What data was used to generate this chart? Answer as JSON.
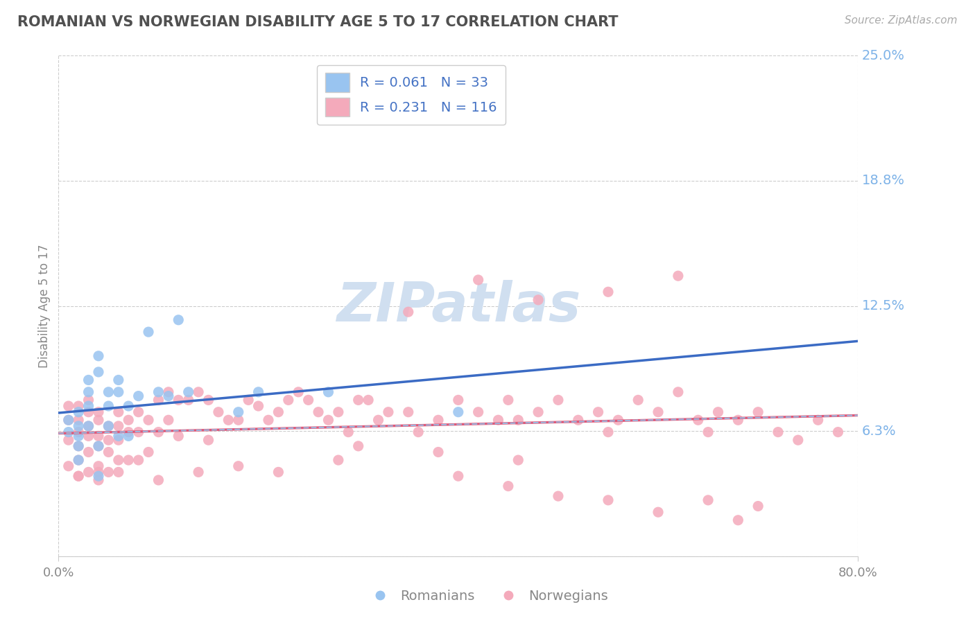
{
  "title": "ROMANIAN VS NORWEGIAN DISABILITY AGE 5 TO 17 CORRELATION CHART",
  "source": "Source: ZipAtlas.com",
  "ylabel": "Disability Age 5 to 17",
  "xlim": [
    0,
    0.8
  ],
  "ylim": [
    0,
    0.25
  ],
  "romanian_R": 0.061,
  "romanian_N": 33,
  "norwegian_R": 0.231,
  "norwegian_N": 116,
  "romanian_color": "#99C4F0",
  "norwegian_color": "#F4AABB",
  "romanian_line_color": "#3B6BC4",
  "norwegian_line_color": "#E05878",
  "norwegian_dashed_color": "#9BB8E0",
  "background_color": "#FFFFFF",
  "grid_color": "#CCCCCC",
  "watermark_color": "#D0DFF0",
  "legend_text_color": "#4472C4",
  "right_label_color": "#7EB3E8",
  "ro_x": [
    0.01,
    0.01,
    0.02,
    0.02,
    0.02,
    0.02,
    0.02,
    0.03,
    0.03,
    0.03,
    0.03,
    0.04,
    0.04,
    0.04,
    0.04,
    0.05,
    0.05,
    0.05,
    0.06,
    0.06,
    0.06,
    0.07,
    0.07,
    0.08,
    0.09,
    0.1,
    0.11,
    0.12,
    0.13,
    0.18,
    0.2,
    0.27,
    0.4
  ],
  "ro_y": [
    0.068,
    0.062,
    0.055,
    0.06,
    0.065,
    0.048,
    0.072,
    0.088,
    0.082,
    0.075,
    0.065,
    0.1,
    0.092,
    0.055,
    0.04,
    0.082,
    0.075,
    0.065,
    0.088,
    0.082,
    0.06,
    0.075,
    0.06,
    0.08,
    0.112,
    0.082,
    0.08,
    0.118,
    0.082,
    0.072,
    0.082,
    0.082,
    0.072
  ],
  "no_x": [
    0.01,
    0.01,
    0.01,
    0.01,
    0.02,
    0.02,
    0.02,
    0.02,
    0.02,
    0.02,
    0.03,
    0.03,
    0.03,
    0.03,
    0.03,
    0.03,
    0.04,
    0.04,
    0.04,
    0.04,
    0.04,
    0.04,
    0.05,
    0.05,
    0.05,
    0.05,
    0.06,
    0.06,
    0.06,
    0.06,
    0.07,
    0.07,
    0.07,
    0.08,
    0.08,
    0.08,
    0.09,
    0.09,
    0.1,
    0.1,
    0.11,
    0.11,
    0.12,
    0.12,
    0.13,
    0.14,
    0.15,
    0.15,
    0.16,
    0.17,
    0.18,
    0.19,
    0.2,
    0.21,
    0.22,
    0.23,
    0.24,
    0.25,
    0.26,
    0.27,
    0.28,
    0.29,
    0.3,
    0.31,
    0.32,
    0.33,
    0.35,
    0.36,
    0.38,
    0.4,
    0.42,
    0.44,
    0.45,
    0.46,
    0.48,
    0.5,
    0.52,
    0.54,
    0.55,
    0.56,
    0.58,
    0.6,
    0.62,
    0.64,
    0.65,
    0.66,
    0.68,
    0.7,
    0.72,
    0.74,
    0.76,
    0.78,
    0.4,
    0.45,
    0.5,
    0.55,
    0.6,
    0.65,
    0.68,
    0.7,
    0.62,
    0.55,
    0.48,
    0.42,
    0.35,
    0.28,
    0.22,
    0.18,
    0.14,
    0.1,
    0.06,
    0.04,
    0.02,
    0.3,
    0.38,
    0.46,
    0.54
  ],
  "no_y": [
    0.068,
    0.058,
    0.075,
    0.045,
    0.068,
    0.062,
    0.055,
    0.075,
    0.048,
    0.04,
    0.072,
    0.065,
    0.06,
    0.052,
    0.078,
    0.042,
    0.068,
    0.06,
    0.055,
    0.072,
    0.045,
    0.038,
    0.065,
    0.058,
    0.052,
    0.042,
    0.072,
    0.065,
    0.058,
    0.042,
    0.068,
    0.062,
    0.048,
    0.072,
    0.062,
    0.048,
    0.068,
    0.052,
    0.078,
    0.062,
    0.082,
    0.068,
    0.078,
    0.06,
    0.078,
    0.082,
    0.078,
    0.058,
    0.072,
    0.068,
    0.068,
    0.078,
    0.075,
    0.068,
    0.072,
    0.078,
    0.082,
    0.078,
    0.072,
    0.068,
    0.072,
    0.062,
    0.078,
    0.078,
    0.068,
    0.072,
    0.072,
    0.062,
    0.068,
    0.078,
    0.072,
    0.068,
    0.078,
    0.068,
    0.072,
    0.078,
    0.068,
    0.072,
    0.062,
    0.068,
    0.078,
    0.072,
    0.082,
    0.068,
    0.062,
    0.072,
    0.068,
    0.072,
    0.062,
    0.058,
    0.068,
    0.062,
    0.04,
    0.035,
    0.03,
    0.028,
    0.022,
    0.028,
    0.018,
    0.025,
    0.14,
    0.132,
    0.128,
    0.138,
    0.122,
    0.048,
    0.042,
    0.045,
    0.042,
    0.038,
    0.048,
    0.042,
    0.04,
    0.055,
    0.052,
    0.048,
    0.045
  ]
}
